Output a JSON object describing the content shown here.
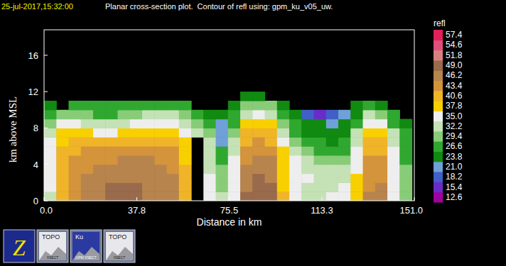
{
  "chart_data": {
    "type": "heatmap",
    "timestamp": "25-jul-2017,15:32:00",
    "title": "Planar cross-section plot.  Contour of refl using: gpm_ku_v05_uw.",
    "x_label": "Distance in km",
    "y_label": "km above MSL",
    "xlim": [
      0,
      151
    ],
    "ylim": [
      0,
      18.8
    ],
    "xticks": [
      {
        "value": 0,
        "label": "0.0"
      },
      37.8,
      75.5,
      113.3,
      {
        "value": 151,
        "label": "151.0"
      }
    ],
    "yticks": [
      0,
      4,
      8,
      12,
      16
    ],
    "grid": false,
    "x": [
      2.5,
      7.5,
      12.5,
      17.5,
      22.5,
      27.5,
      32.5,
      37.5,
      42.5,
      47.5,
      52.5,
      57.5,
      62.5,
      67.5,
      72.5,
      77.5,
      82.5,
      87.5,
      92.5,
      97.5,
      102.5,
      107.5,
      112.5,
      117.5,
      122.5,
      127.5,
      132.5,
      137.5,
      142.5,
      147.5
    ],
    "y": [
      0.5,
      1.5,
      2.5,
      3.5,
      4.5,
      5.5,
      6.5,
      7.5,
      8.5,
      9.5,
      10.5,
      11.5
    ],
    "cells": [
      [
        33,
        42,
        44,
        45,
        47,
        49,
        49,
        48,
        47,
        47,
        46,
        41,
        null,
        34,
        31,
        36,
        48,
        49,
        49,
        40,
        34,
        33,
        33,
        34,
        35,
        38,
        45,
        46,
        36,
        30
      ],
      [
        34,
        42,
        44,
        46,
        47,
        48,
        49,
        48,
        47,
        46,
        46,
        41,
        null,
        34,
        30,
        36,
        47,
        49,
        48,
        39,
        34,
        33,
        32,
        33,
        34,
        38,
        44,
        45,
        36,
        30
      ],
      [
        35,
        41,
        44,
        45,
        46,
        47,
        47,
        47,
        46,
        46,
        45,
        40,
        null,
        34,
        29,
        35,
        46,
        48,
        47,
        39,
        35,
        34,
        32,
        32,
        33,
        37,
        44,
        44,
        35,
        29
      ],
      [
        35,
        41,
        43,
        44,
        45,
        46,
        46,
        46,
        45,
        45,
        44,
        40,
        null,
        33,
        29,
        35,
        45,
        47,
        46,
        38,
        35,
        33,
        31,
        31,
        31,
        36,
        43,
        44,
        35,
        29
      ],
      [
        35,
        40,
        43,
        44,
        44,
        44,
        45,
        45,
        45,
        44,
        44,
        39,
        null,
        33,
        28,
        34,
        44,
        46,
        45,
        38,
        34,
        31,
        29,
        29,
        30,
        35,
        43,
        43,
        35,
        28
      ],
      [
        36,
        40,
        42,
        43,
        43,
        43,
        43,
        44,
        44,
        43,
        43,
        39,
        null,
        32,
        27,
        33,
        43,
        44,
        44,
        37,
        32,
        29,
        27,
        27,
        28,
        34,
        42,
        42,
        34,
        28
      ],
      [
        35,
        39,
        40,
        40,
        40,
        40,
        40,
        41,
        41,
        41,
        41,
        38,
        null,
        31,
        22,
        31,
        42,
        43,
        42,
        35,
        30,
        27,
        26,
        25,
        26,
        33,
        41,
        40,
        33,
        27
      ],
      [
        33,
        38,
        38,
        37,
        36,
        36,
        37,
        38,
        38,
        39,
        39,
        36,
        33,
        30,
        21,
        29,
        40,
        41,
        40,
        33,
        28,
        25,
        25,
        24,
        25,
        31,
        39,
        38,
        31,
        26
      ],
      [
        30,
        35,
        35,
        33,
        33,
        32,
        33,
        34,
        35,
        35,
        35,
        33,
        29,
        27,
        22,
        27,
        38,
        38,
        37,
        30,
        26,
        23,
        23,
        22,
        24,
        28,
        36,
        35,
        28,
        25
      ],
      [
        27,
        30,
        30,
        29,
        28,
        28,
        29,
        30,
        31,
        31,
        31,
        29,
        26,
        24,
        24,
        26,
        33,
        34,
        33,
        27,
        24,
        19,
        16,
        18,
        20,
        25,
        31,
        30,
        26,
        null
      ],
      [
        24,
        null,
        26,
        27,
        26,
        26,
        27,
        27,
        27,
        27,
        27,
        26,
        null,
        null,
        null,
        25,
        29,
        30,
        29,
        25,
        null,
        null,
        null,
        null,
        null,
        23,
        26,
        25,
        null,
        null
      ],
      [
        null,
        null,
        null,
        null,
        null,
        null,
        null,
        null,
        null,
        null,
        null,
        null,
        null,
        null,
        null,
        null,
        24,
        25,
        null,
        null,
        null,
        null,
        null,
        null,
        null,
        null,
        null,
        null,
        null,
        null
      ]
    ],
    "colorbar": {
      "label": "refl",
      "range": [
        11.2,
        58.8
      ],
      "ticks": [
        12.6,
        15.4,
        18.2,
        {
          "value": 21,
          "label": "21.0"
        },
        23.8,
        26.6,
        29.4,
        32.2,
        {
          "value": 35,
          "label": "35.0"
        },
        37.8,
        40.6,
        43.4,
        46.2,
        {
          "value": 49,
          "label": "49.0"
        },
        51.8,
        54.6,
        57.4
      ],
      "colors": [
        "#a000a0",
        "#6a2cc8",
        "#4060c8",
        "#6fa0d8",
        "#108a10",
        "#30a830",
        "#88cc78",
        "#c4e2b6",
        "#eeeeee",
        "#f8d000",
        "#f0b428",
        "#d4943c",
        "#b8844e",
        "#9a6a4c",
        "#d88080",
        "#e04e7c",
        "#e0205a"
      ]
    },
    "toolbar": [
      {
        "label": "Z"
      },
      {
        "label": "TOPO",
        "sub": "XSECT"
      },
      {
        "label": "Ku",
        "sub": "GPM XSECT"
      },
      {
        "label": "TOPO",
        "sub": "XSECT"
      }
    ]
  }
}
